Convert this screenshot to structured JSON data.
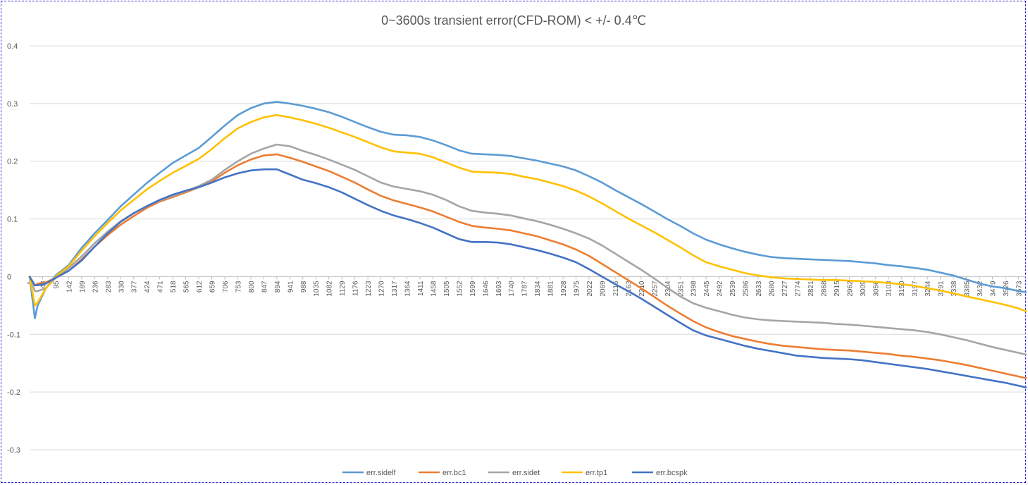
{
  "chart_data": {
    "type": "line",
    "title": "0~3600s transient error(CFD-ROM) < +/- 0.4℃",
    "xlabel": "",
    "ylabel": "",
    "ylim": [
      -0.3,
      0.4
    ],
    "yticks": [
      0.4,
      0.3,
      0.2,
      0.1,
      0,
      -0.1,
      -0.2,
      -0.3
    ],
    "grid": true,
    "legend_position": "bottom",
    "xlim": [
      1,
      3600
    ],
    "xtick_labels": [
      "1",
      "48",
      "95",
      "142",
      "189",
      "236",
      "283",
      "330",
      "377",
      "424",
      "471",
      "518",
      "565",
      "612",
      "659",
      "706",
      "753",
      "800",
      "847",
      "894",
      "941",
      "988",
      "1035",
      "1082",
      "1129",
      "1176",
      "1223",
      "1270",
      "1317",
      "1364",
      "1411",
      "1458",
      "1505",
      "1552",
      "1599",
      "1646",
      "1693",
      "1740",
      "1787",
      "1834",
      "1881",
      "1928",
      "1975",
      "2022",
      "2069",
      "2116",
      "2163",
      "2210",
      "2257",
      "2304",
      "2351",
      "2398",
      "2445",
      "2492",
      "2539",
      "2586",
      "2633",
      "2680",
      "2727",
      "2774",
      "2821",
      "2868",
      "2915",
      "2962",
      "3009",
      "3056",
      "3103",
      "3150",
      "3197",
      "3244",
      "3291",
      "3338",
      "3385",
      "3432",
      "3479",
      "3526",
      "3573"
    ],
    "x": [
      1,
      20,
      30,
      60,
      95,
      142,
      189,
      236,
      283,
      330,
      377,
      424,
      471,
      518,
      565,
      612,
      659,
      706,
      753,
      800,
      847,
      894,
      941,
      988,
      1035,
      1082,
      1129,
      1176,
      1223,
      1270,
      1317,
      1364,
      1411,
      1458,
      1505,
      1552,
      1599,
      1646,
      1693,
      1740,
      1787,
      1834,
      1881,
      1928,
      1975,
      2022,
      2069,
      2116,
      2163,
      2210,
      2257,
      2304,
      2351,
      2398,
      2445,
      2492,
      2539,
      2586,
      2633,
      2680,
      2727,
      2774,
      2821,
      2868,
      2915,
      2962,
      3009,
      3056,
      3103,
      3150,
      3197,
      3244,
      3291,
      3338,
      3385,
      3432,
      3479,
      3526,
      3573,
      3600
    ],
    "series": [
      {
        "name": "err.sidelf",
        "color": "#5b9bd5",
        "values": [
          0,
          -0.072,
          -0.05,
          -0.02,
          0.002,
          0.02,
          0.05,
          0.075,
          0.098,
          0.122,
          0.142,
          0.162,
          0.18,
          0.197,
          0.21,
          0.223,
          0.242,
          0.262,
          0.28,
          0.292,
          0.3,
          0.303,
          0.3,
          0.296,
          0.291,
          0.285,
          0.277,
          0.268,
          0.259,
          0.251,
          0.246,
          0.245,
          0.242,
          0.236,
          0.228,
          0.219,
          0.213,
          0.212,
          0.211,
          0.209,
          0.205,
          0.201,
          0.196,
          0.191,
          0.184,
          0.174,
          0.163,
          0.15,
          0.138,
          0.126,
          0.113,
          0.1,
          0.088,
          0.075,
          0.064,
          0.056,
          0.049,
          0.043,
          0.038,
          0.034,
          0.032,
          0.031,
          0.03,
          0.029,
          0.028,
          0.027,
          0.025,
          0.023,
          0.02,
          0.018,
          0.015,
          0.012,
          0.007,
          0.002,
          -0.005,
          -0.012,
          -0.017,
          -0.02,
          -0.025,
          -0.027
        ]
      },
      {
        "name": "err.bc1",
        "color": "#ed7d31",
        "values": [
          0,
          -0.015,
          -0.012,
          -0.01,
          -0.002,
          0.01,
          0.03,
          0.052,
          0.072,
          0.09,
          0.105,
          0.119,
          0.13,
          0.138,
          0.146,
          0.155,
          0.165,
          0.18,
          0.193,
          0.203,
          0.21,
          0.212,
          0.206,
          0.199,
          0.191,
          0.183,
          0.173,
          0.163,
          0.151,
          0.14,
          0.132,
          0.126,
          0.12,
          0.113,
          0.104,
          0.095,
          0.088,
          0.085,
          0.083,
          0.08,
          0.075,
          0.07,
          0.063,
          0.056,
          0.047,
          0.036,
          0.022,
          0.008,
          -0.006,
          -0.02,
          -0.035,
          -0.05,
          -0.064,
          -0.077,
          -0.088,
          -0.096,
          -0.103,
          -0.108,
          -0.113,
          -0.117,
          -0.12,
          -0.122,
          -0.124,
          -0.126,
          -0.127,
          -0.128,
          -0.13,
          -0.132,
          -0.134,
          -0.137,
          -0.139,
          -0.142,
          -0.145,
          -0.149,
          -0.153,
          -0.158,
          -0.163,
          -0.168,
          -0.173,
          -0.176
        ]
      },
      {
        "name": "err.sidet",
        "color": "#a5a5a5",
        "values": [
          0,
          -0.025,
          -0.025,
          -0.02,
          -0.002,
          0.015,
          0.035,
          0.058,
          0.078,
          0.096,
          0.11,
          0.122,
          0.132,
          0.14,
          0.148,
          0.157,
          0.168,
          0.185,
          0.2,
          0.213,
          0.222,
          0.229,
          0.226,
          0.218,
          0.211,
          0.203,
          0.194,
          0.185,
          0.174,
          0.163,
          0.156,
          0.152,
          0.148,
          0.142,
          0.133,
          0.122,
          0.114,
          0.111,
          0.109,
          0.106,
          0.101,
          0.096,
          0.09,
          0.083,
          0.075,
          0.066,
          0.054,
          0.04,
          0.026,
          0.012,
          -0.003,
          -0.019,
          -0.034,
          -0.046,
          -0.054,
          -0.06,
          -0.066,
          -0.071,
          -0.074,
          -0.076,
          -0.077,
          -0.078,
          -0.079,
          -0.08,
          -0.082,
          -0.083,
          -0.085,
          -0.087,
          -0.089,
          -0.091,
          -0.093,
          -0.096,
          -0.1,
          -0.105,
          -0.11,
          -0.116,
          -0.122,
          -0.127,
          -0.132,
          -0.135
        ]
      },
      {
        "name": "err.tp1",
        "color": "#ffc000",
        "values": [
          0,
          -0.05,
          -0.045,
          -0.02,
          0,
          0.018,
          0.045,
          0.07,
          0.093,
          0.115,
          0.133,
          0.151,
          0.166,
          0.18,
          0.192,
          0.204,
          0.221,
          0.24,
          0.257,
          0.268,
          0.276,
          0.28,
          0.276,
          0.271,
          0.265,
          0.258,
          0.25,
          0.242,
          0.233,
          0.224,
          0.217,
          0.215,
          0.213,
          0.207,
          0.198,
          0.189,
          0.182,
          0.181,
          0.18,
          0.178,
          0.173,
          0.169,
          0.163,
          0.157,
          0.149,
          0.139,
          0.127,
          0.114,
          0.101,
          0.089,
          0.077,
          0.064,
          0.051,
          0.037,
          0.025,
          0.018,
          0.012,
          0.006,
          0.002,
          -0.001,
          -0.003,
          -0.004,
          -0.005,
          -0.006,
          -0.006,
          -0.007,
          -0.008,
          -0.009,
          -0.011,
          -0.013,
          -0.016,
          -0.02,
          -0.024,
          -0.029,
          -0.034,
          -0.039,
          -0.044,
          -0.049,
          -0.055,
          -0.06
        ]
      },
      {
        "name": "err.bcspk",
        "color": "#4472c4",
        "values": [
          0,
          -0.015,
          -0.015,
          -0.012,
          -0.002,
          0.01,
          0.028,
          0.052,
          0.075,
          0.095,
          0.11,
          0.122,
          0.133,
          0.142,
          0.149,
          0.155,
          0.163,
          0.172,
          0.179,
          0.184,
          0.186,
          0.186,
          0.177,
          0.168,
          0.162,
          0.155,
          0.146,
          0.135,
          0.124,
          0.114,
          0.106,
          0.1,
          0.093,
          0.085,
          0.075,
          0.065,
          0.06,
          0.06,
          0.059,
          0.056,
          0.051,
          0.046,
          0.04,
          0.033,
          0.025,
          0.013,
          0,
          -0.013,
          -0.025,
          -0.038,
          -0.052,
          -0.066,
          -0.08,
          -0.093,
          -0.102,
          -0.108,
          -0.114,
          -0.12,
          -0.125,
          -0.129,
          -0.133,
          -0.137,
          -0.139,
          -0.141,
          -0.142,
          -0.143,
          -0.145,
          -0.148,
          -0.151,
          -0.154,
          -0.157,
          -0.16,
          -0.164,
          -0.168,
          -0.172,
          -0.176,
          -0.18,
          -0.184,
          -0.189,
          -0.192
        ]
      }
    ]
  }
}
